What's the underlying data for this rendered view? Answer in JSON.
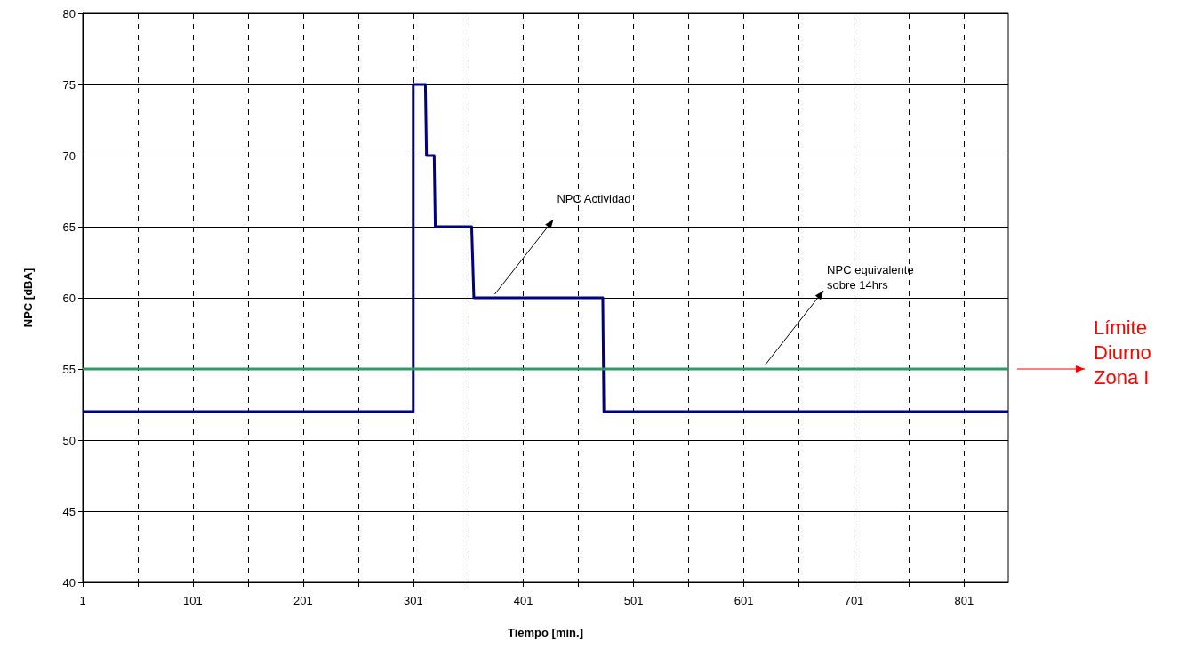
{
  "chart_data": {
    "type": "line",
    "xlabel": "Tiempo [min.]",
    "ylabel": "NPC [dBA]",
    "xlim": [
      1,
      841
    ],
    "ylim": [
      40,
      80
    ],
    "xticks": [
      1,
      {
        "value": 51,
        "label": null
      },
      101,
      {
        "value": 151,
        "label": null
      },
      201,
      {
        "value": 251,
        "label": null
      },
      301,
      {
        "value": 351,
        "label": null
      },
      401,
      {
        "value": 451,
        "label": null
      },
      501,
      {
        "value": 551,
        "label": null
      },
      601,
      {
        "value": 651,
        "label": null
      },
      701,
      {
        "value": 751,
        "label": null
      },
      801
    ],
    "yticks": [
      40,
      45,
      50,
      55,
      60,
      65,
      70,
      75,
      80
    ],
    "grid": true,
    "marker": "none",
    "line_style": "solid",
    "series": [
      {
        "color": "#000080",
        "x": [
          1,
          301,
          301,
          312,
          313,
          320,
          321,
          354,
          356,
          473,
          474,
          841
        ],
        "values": [
          52,
          52,
          75,
          75,
          70,
          70,
          65,
          65,
          60,
          60,
          52,
          52
        ]
      },
      {
        "color": "#339966",
        "x": [
          1,
          841
        ],
        "values": [
          55,
          55
        ]
      }
    ],
    "annotations": [
      {
        "text": "NPC Actividad",
        "x": 375,
        "y": 60
      },
      {
        "text": "NPC equivalente\nsobre 14hrs",
        "x": 620,
        "y": 55
      },
      "Límite\nDiurno\nZona I"
    ]
  }
}
